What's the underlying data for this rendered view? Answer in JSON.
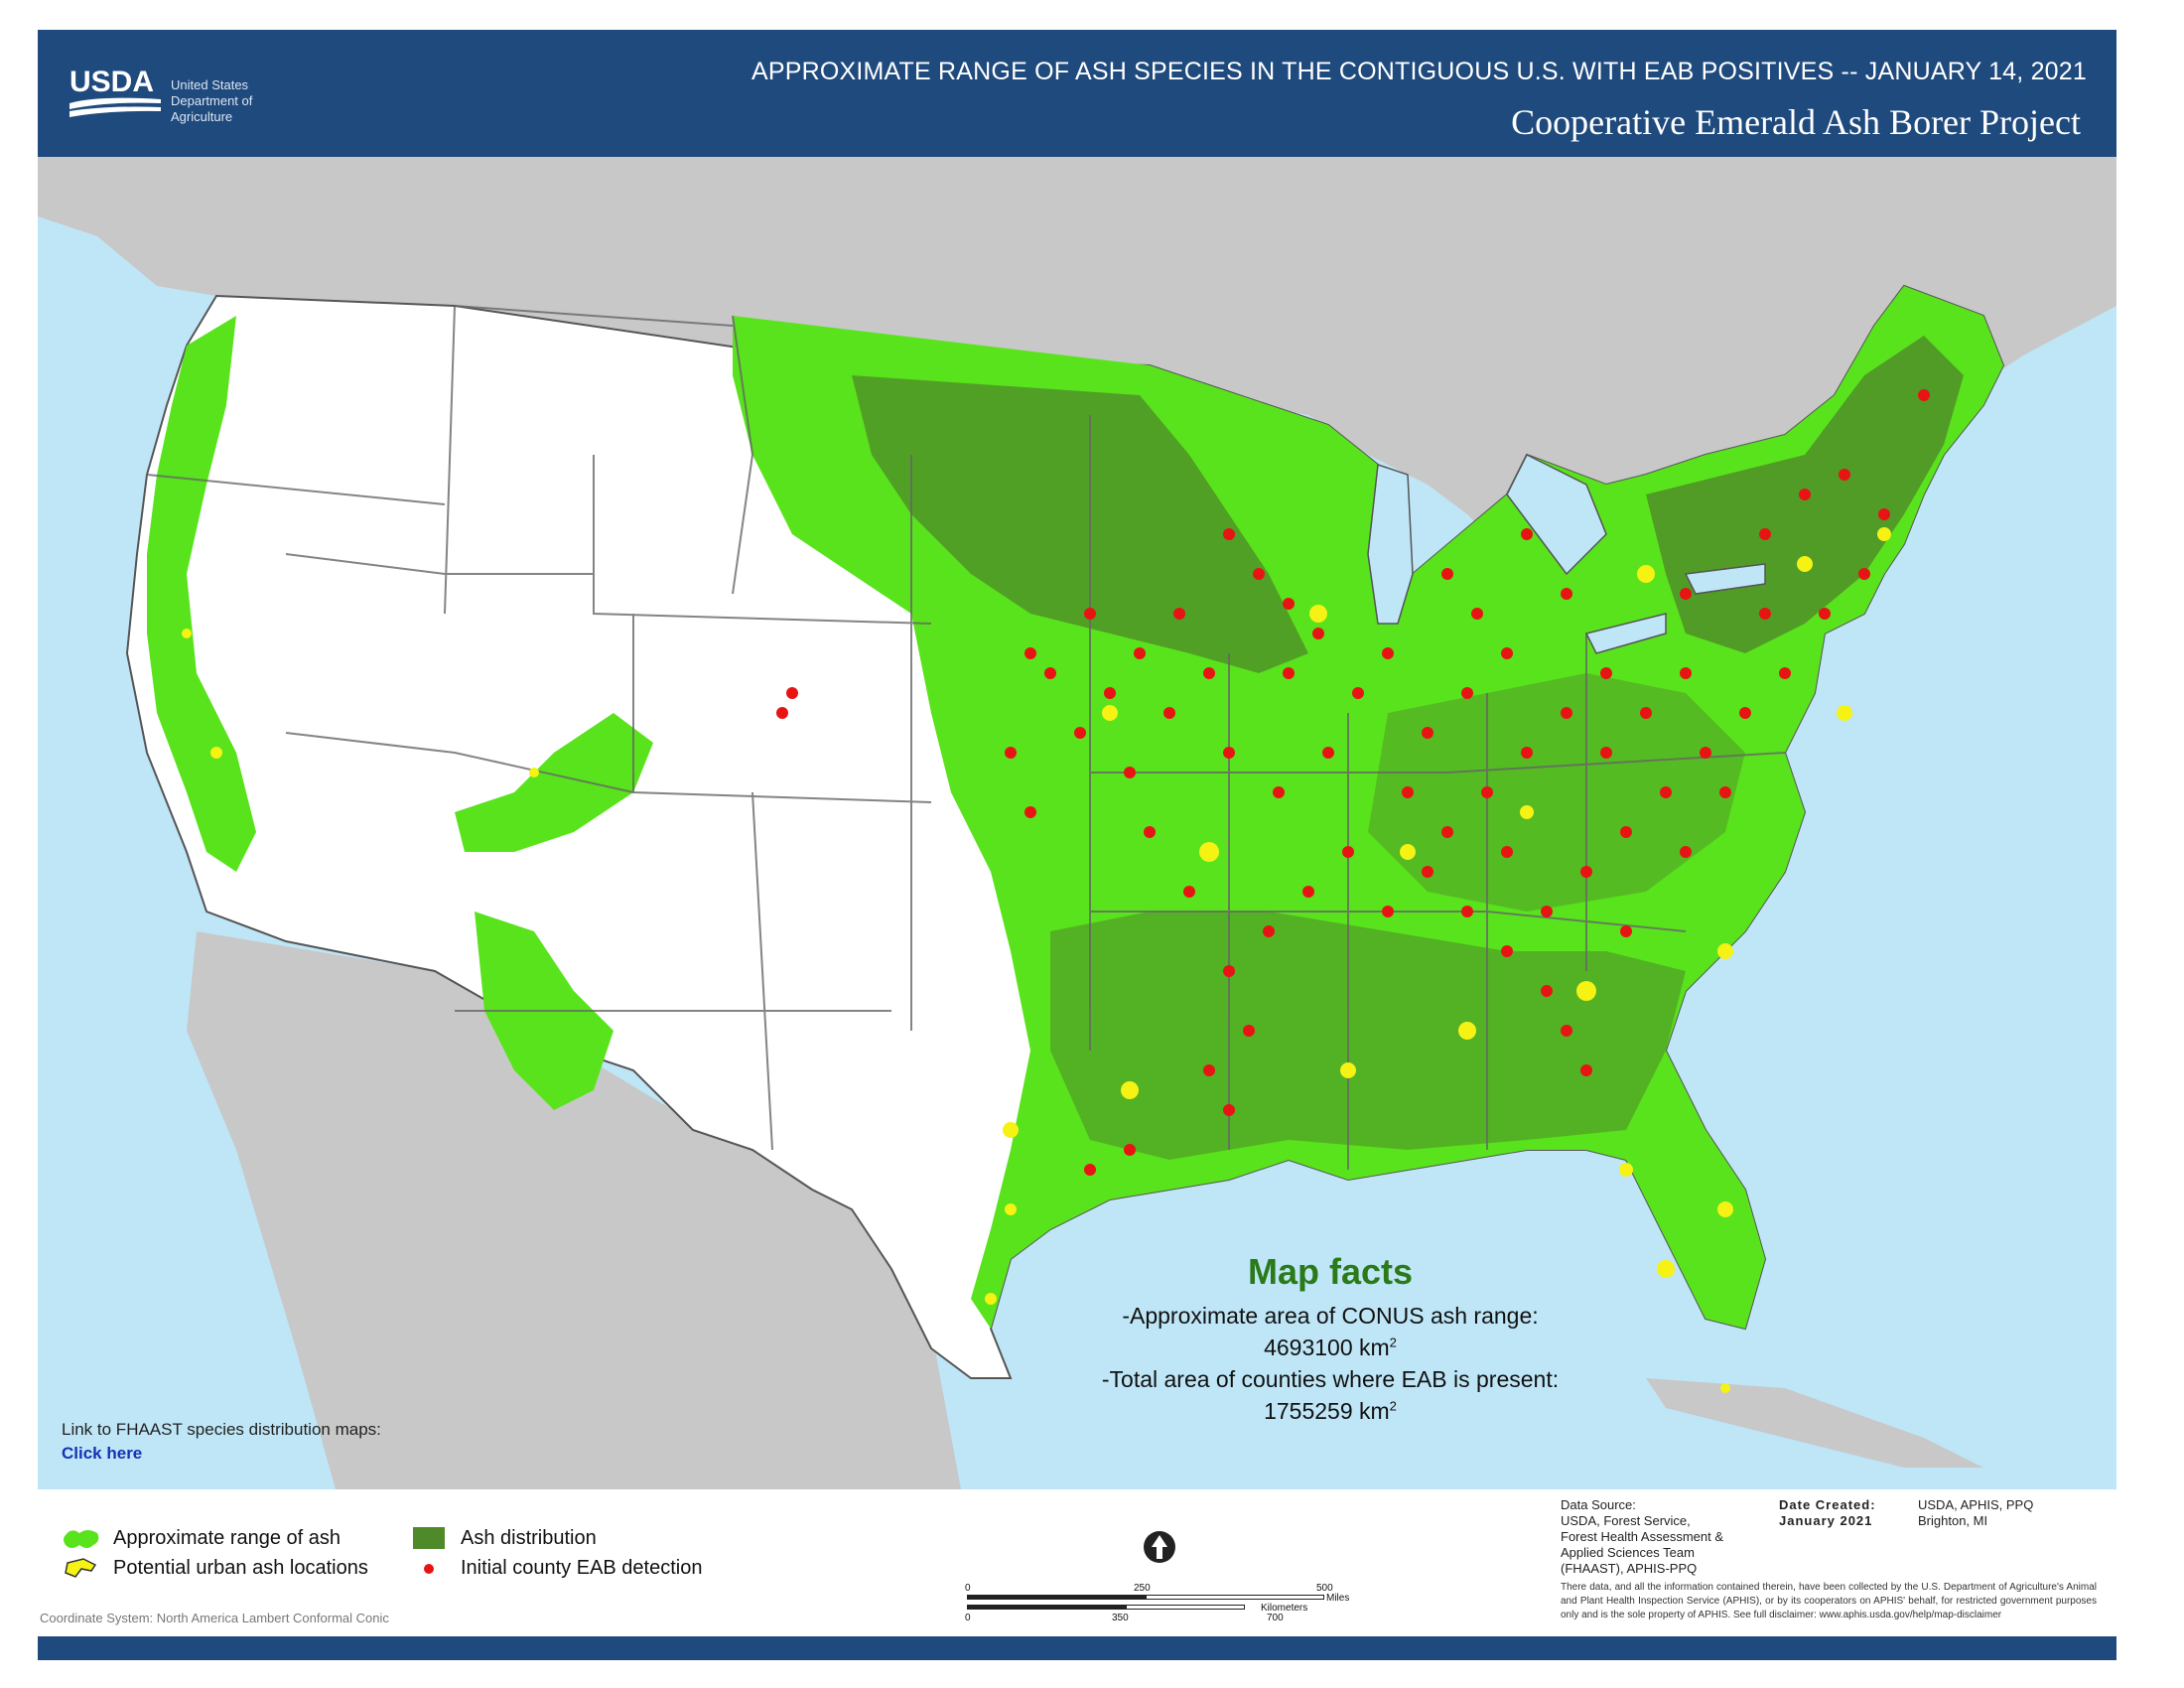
{
  "header": {
    "logo_text": "USDA",
    "agency_lines": [
      "United States",
      "Department of",
      "Agriculture"
    ],
    "title": "APPROXIMATE RANGE OF ASH SPECIES IN THE CONTIGUOUS U.S. WITH EAB POSITIVES  --  JANUARY 14, 2021",
    "subtitle": "Cooperative Emerald Ash Borer Project"
  },
  "map_facts": {
    "title": "Map facts",
    "line1": "-Approximate area of CONUS ash range:",
    "value1": "4693100 km",
    "line2": "-Total area of counties where EAB is present:",
    "value2": "1755259 km",
    "unit_superscript": "2"
  },
  "link": {
    "label": "Link to FHAAST species distribution maps:",
    "click_label": "Click here"
  },
  "legend": {
    "range": "Approximate range of ash",
    "urban": "Potential urban ash locations",
    "distribution": "Ash distribution",
    "detection": "Initial county EAB detection"
  },
  "colors": {
    "range_green": "#59e31c",
    "distribution_green": "#4f8a2a",
    "urban_yellow": "#f5f214",
    "detection_red": "#e81414",
    "water": "#bfe6f7",
    "land_other": "#c8c8c8",
    "header_blue": "#1f4a7d"
  },
  "coordinate_system": "Coordinate System: North America Lambert Conformal Conic",
  "scale": {
    "miles_label": "Miles",
    "km_label": "Kilometers",
    "mile_ticks": [
      "0",
      "250",
      "500"
    ],
    "km_ticks": [
      "0",
      "350",
      "700"
    ]
  },
  "source": {
    "heading": "Data Source:",
    "lines": [
      "USDA, Forest Service,",
      "Forest Health Assessment &",
      "Applied Sciences Team",
      "(FHAAST), APHIS-PPQ"
    ],
    "date_heading": "Date Created:",
    "date": "January 2021",
    "org": "USDA, APHIS, PPQ",
    "org_location": "Brighton, MI",
    "disclaimer": "There data, and all the information contained therein, have been collected by the U.S. Department of Agriculture's Animal and Plant Health Inspection Service (APHIS), or by its cooperators on APHIS' behalf, for restricted government purposes only and is the sole property of APHIS. See full disclaimer: www.aphis.usda.gov/help/map-disclaimer"
  }
}
